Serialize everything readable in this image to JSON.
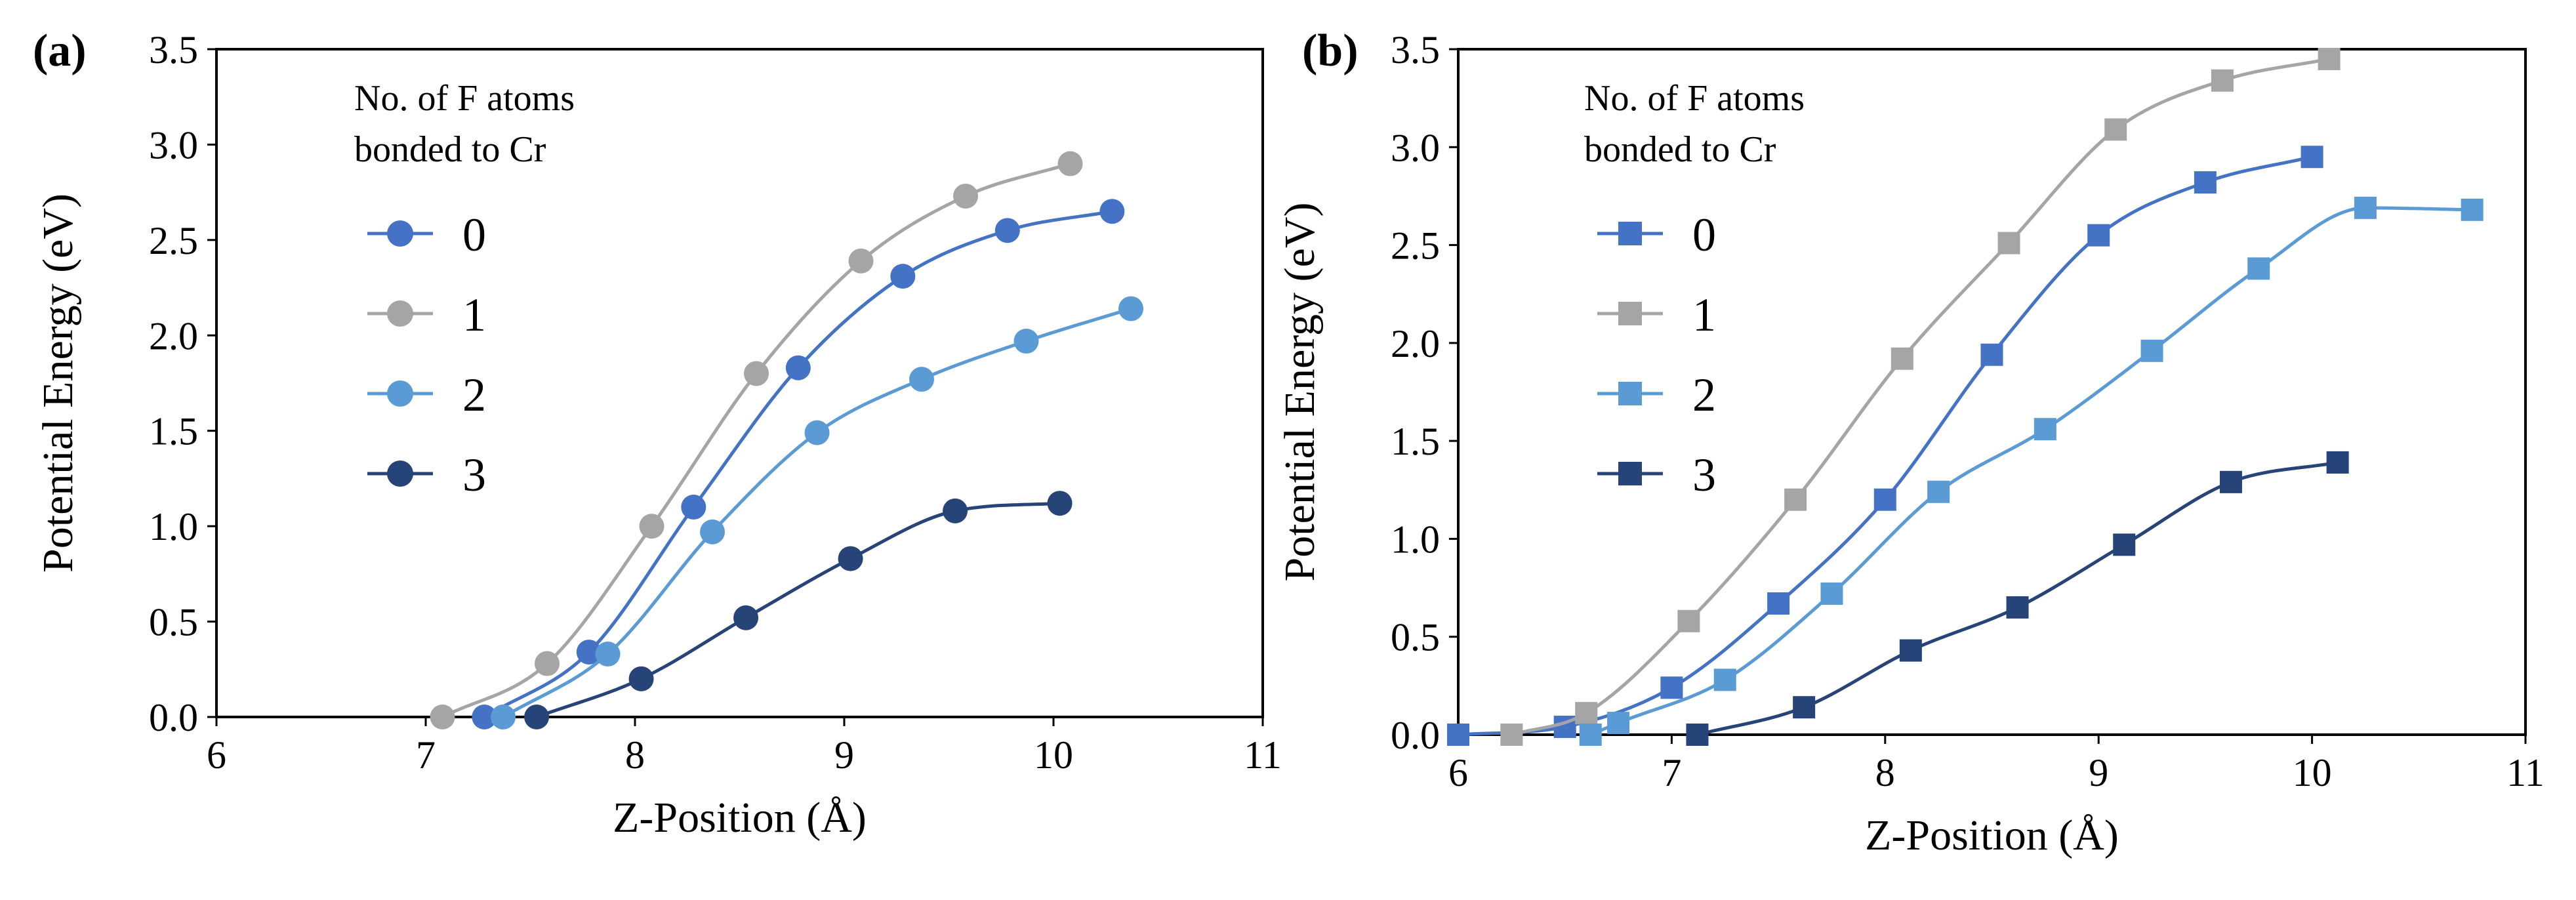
{
  "chart_data": [
    {
      "panel_label": "(a)",
      "type": "line",
      "marker": "circle",
      "xlabel": "Z-Position (Å)",
      "ylabel": "Potential Energy (eV)",
      "xlim": [
        6,
        11
      ],
      "ylim": [
        0,
        3.5
      ],
      "xticks": [
        "6",
        "7",
        "8",
        "9",
        "10",
        "11"
      ],
      "yticks": [
        "0.0",
        "0.5",
        "1.0",
        "1.5",
        "2.0",
        "2.5",
        "3.0",
        "3.5"
      ],
      "legend_title": [
        "No. of F atoms",
        "bonded to Cr"
      ],
      "series": [
        {
          "name": "0",
          "color": "#4472c4",
          "x": [
            7.28,
            7.78,
            8.28,
            8.78,
            9.28,
            9.78,
            10.28
          ],
          "y": [
            0.0,
            0.34,
            1.1,
            1.83,
            2.31,
            2.55,
            2.65
          ]
        },
        {
          "name": "1",
          "color": "#a5a5a5",
          "x": [
            7.08,
            7.58,
            8.08,
            8.58,
            9.08,
            9.58,
            10.08
          ],
          "y": [
            0.0,
            0.28,
            1.0,
            1.8,
            2.39,
            2.73,
            2.9
          ]
        },
        {
          "name": "2",
          "color": "#5b9bd5",
          "x": [
            7.37,
            7.87,
            8.37,
            8.87,
            9.37,
            9.87,
            10.37
          ],
          "y": [
            0.0,
            0.33,
            0.97,
            1.49,
            1.77,
            1.97,
            2.14
          ]
        },
        {
          "name": "3",
          "color": "#264478",
          "x": [
            7.53,
            8.03,
            8.53,
            9.03,
            9.53,
            10.03
          ],
          "y": [
            0.0,
            0.2,
            0.52,
            0.83,
            1.08,
            1.12
          ]
        }
      ]
    },
    {
      "panel_label": "(b)",
      "type": "line",
      "marker": "square",
      "xlabel": "Z-Position (Å)",
      "ylabel": "Potential Energy (eV)",
      "xlim": [
        6,
        11
      ],
      "ylim": [
        0,
        3.5
      ],
      "xticks": [
        "6",
        "7",
        "8",
        "9",
        "10",
        "11"
      ],
      "yticks": [
        "0.0",
        "0.5",
        "1.0",
        "1.5",
        "2.0",
        "2.5",
        "3.0",
        "3.5"
      ],
      "legend_title": [
        "No. of F atoms",
        "bonded to Cr"
      ],
      "series": [
        {
          "name": "0",
          "color": "#4472c4",
          "x": [
            6.0,
            6.5,
            7.0,
            7.5,
            8.0,
            8.5,
            9.0,
            9.5,
            10.0
          ],
          "y": [
            0.0,
            0.04,
            0.24,
            0.67,
            1.2,
            1.94,
            2.55,
            2.82,
            2.95
          ]
        },
        {
          "name": "1",
          "color": "#a5a5a5",
          "x": [
            6.25,
            6.6,
            7.08,
            7.58,
            8.08,
            8.58,
            9.08,
            9.58,
            10.08
          ],
          "y": [
            0.0,
            0.11,
            0.58,
            1.2,
            1.92,
            2.51,
            3.09,
            3.34,
            3.45
          ]
        },
        {
          "name": "2",
          "color": "#5b9bd5",
          "x": [
            6.62,
            6.75,
            7.25,
            7.75,
            8.25,
            8.75,
            9.25,
            9.75,
            10.25,
            10.75
          ],
          "y": [
            0.0,
            0.06,
            0.28,
            0.72,
            1.24,
            1.56,
            1.96,
            2.38,
            2.69,
            2.68
          ]
        },
        {
          "name": "3",
          "color": "#264478",
          "x": [
            7.12,
            7.62,
            8.12,
            8.62,
            9.12,
            9.62,
            10.12
          ],
          "y": [
            0.0,
            0.14,
            0.43,
            0.65,
            0.97,
            1.29,
            1.39
          ]
        }
      ]
    }
  ]
}
